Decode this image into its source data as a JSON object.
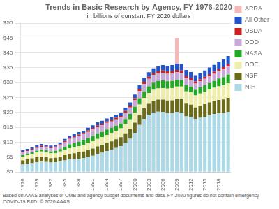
{
  "chart_data": {
    "type": "bar",
    "title": "Trends in Basic Research by Agency, FY 1976-2020",
    "subtitle": "in billions of constant FY 2020 dollars",
    "annotations": [
      "Based on AAAS analyses of OMB and agency budget documents and data. FY 2020 figures do not contain emergency COVID-19 R&D.  © 2020 AAAS"
    ],
    "stacked": true,
    "categories": [
      "1976",
      null,
      null,
      "1979",
      null,
      null,
      "1982",
      null,
      null,
      "1985",
      null,
      null,
      "1988",
      null,
      null,
      "1991",
      null,
      null,
      "1994",
      null,
      null,
      "1997",
      null,
      null,
      "2000",
      null,
      null,
      "2003",
      null,
      null,
      "2006",
      null,
      null,
      "2009",
      null,
      null,
      "2012",
      null,
      null,
      "2015",
      null,
      null,
      "2018",
      null,
      null
    ],
    "series": [
      {
        "name": "NIH",
        "color": "#add8e6",
        "values": [
          2.5,
          2.8,
          3.0,
          3.3,
          3.5,
          3.4,
          3.2,
          3.3,
          3.6,
          3.9,
          4.2,
          4.3,
          4.5,
          4.7,
          5.1,
          5.5,
          6.1,
          6.5,
          7.0,
          7.5,
          8.1,
          8.7,
          9.8,
          11.2,
          13.2,
          15.8,
          17.8,
          19.2,
          20.0,
          20.3,
          20.2,
          19.8,
          19.8,
          20.2,
          20.0,
          18.7,
          18.5,
          17.8,
          18.2,
          18.6,
          19.1,
          19.5,
          19.7,
          19.8,
          20.2
        ]
      },
      {
        "name": "NSF",
        "color": "#6b6b1a",
        "values": [
          1.4,
          1.5,
          1.6,
          1.7,
          1.7,
          1.6,
          1.5,
          1.5,
          1.6,
          1.8,
          1.9,
          2.0,
          2.1,
          2.2,
          2.3,
          2.4,
          2.5,
          2.6,
          2.7,
          2.8,
          2.9,
          3.0,
          3.2,
          3.3,
          3.4,
          3.5,
          3.6,
          3.7,
          3.9,
          4.0,
          4.1,
          4.2,
          4.3,
          4.4,
          4.5,
          4.3,
          4.1,
          3.9,
          4.1,
          4.2,
          4.3,
          4.4,
          4.5,
          4.6,
          4.7
        ]
      },
      {
        "name": "DOE",
        "color": "#eeeeaa",
        "values": [
          1.3,
          1.4,
          1.5,
          1.6,
          1.7,
          1.7,
          1.6,
          1.6,
          1.7,
          1.8,
          1.9,
          2.0,
          2.1,
          2.2,
          2.3,
          2.4,
          2.5,
          2.6,
          2.7,
          2.8,
          2.9,
          3.0,
          3.1,
          3.2,
          3.3,
          3.4,
          3.5,
          3.6,
          3.7,
          3.8,
          3.9,
          4.0,
          4.1,
          4.1,
          4.2,
          4.1,
          4.1,
          4.0,
          4.1,
          4.2,
          4.3,
          4.4,
          4.6,
          4.7,
          4.9
        ]
      },
      {
        "name": "NASA",
        "color": "#22aa22",
        "values": [
          0.5,
          0.5,
          0.5,
          0.6,
          0.6,
          0.6,
          0.6,
          0.7,
          0.8,
          1.0,
          1.3,
          1.4,
          1.5,
          1.6,
          1.7,
          1.8,
          1.9,
          1.8,
          1.9,
          1.8,
          1.7,
          1.6,
          1.7,
          1.8,
          2.0,
          2.1,
          2.2,
          2.3,
          2.4,
          2.5,
          2.6,
          2.5,
          2.4,
          2.3,
          2.2,
          2.1,
          2.0,
          1.9,
          2.0,
          2.1,
          2.2,
          2.3,
          2.6,
          2.8,
          2.9
        ]
      },
      {
        "name": "DOD",
        "color": "#c8a8d8",
        "values": [
          0.8,
          0.8,
          0.9,
          0.9,
          1.0,
          1.0,
          1.1,
          1.2,
          1.3,
          1.5,
          1.8,
          1.9,
          2.0,
          2.0,
          2.1,
          2.2,
          2.2,
          2.2,
          2.2,
          2.1,
          2.1,
          2.0,
          2.1,
          2.2,
          2.3,
          2.4,
          2.5,
          2.5,
          2.5,
          2.5,
          2.5,
          2.5,
          2.5,
          2.5,
          2.4,
          2.3,
          2.2,
          2.1,
          2.1,
          2.2,
          2.3,
          2.4,
          2.5,
          2.6,
          2.7
        ]
      },
      {
        "name": "USDA",
        "color": "#cc2222",
        "values": [
          0.3,
          0.3,
          0.3,
          0.3,
          0.3,
          0.3,
          0.3,
          0.3,
          0.3,
          0.4,
          0.4,
          0.4,
          0.4,
          0.4,
          0.5,
          0.5,
          0.5,
          0.5,
          0.5,
          0.5,
          0.5,
          0.5,
          0.6,
          0.6,
          0.6,
          0.6,
          0.7,
          0.7,
          0.7,
          0.7,
          0.8,
          0.8,
          0.8,
          0.8,
          0.8,
          0.7,
          0.7,
          0.7,
          0.7,
          0.7,
          0.7,
          0.7,
          0.7,
          0.7,
          0.8
        ]
      },
      {
        "name": "All Other",
        "color": "#2255cc",
        "values": [
          0.5,
          0.5,
          0.5,
          0.6,
          0.6,
          0.6,
          0.6,
          0.6,
          0.6,
          0.7,
          0.7,
          0.8,
          0.8,
          0.8,
          0.9,
          0.9,
          1.0,
          1.0,
          1.0,
          1.0,
          1.0,
          1.0,
          1.1,
          1.1,
          1.2,
          1.3,
          1.4,
          1.5,
          1.6,
          1.7,
          1.8,
          1.9,
          2.0,
          2.1,
          2.2,
          2.1,
          2.0,
          1.9,
          2.0,
          2.1,
          2.2,
          2.3,
          2.5,
          2.6,
          2.8
        ]
      },
      {
        "name": "ARRA",
        "color": "#f5b8b8",
        "values": [
          0.0,
          0.0,
          0.0,
          0.0,
          0.0,
          0.0,
          0.0,
          0.0,
          0.0,
          0.0,
          0.0,
          0.0,
          0.0,
          0.0,
          0.0,
          0.0,
          0.0,
          0.0,
          0.0,
          0.0,
          0.0,
          0.0,
          0.0,
          0.0,
          0.0,
          0.0,
          0.0,
          0.0,
          0.0,
          0.0,
          0.0,
          0.0,
          0.0,
          8.7,
          0.0,
          0.0,
          0.0,
          0.0,
          0.0,
          0.0,
          0.0,
          0.0,
          0.0,
          0.0,
          0.0
        ]
      }
    ],
    "ylim": [
      0,
      50
    ],
    "yticks": [
      {
        "value": 0,
        "label": "$0"
      },
      {
        "value": 5,
        "label": "$5"
      },
      {
        "value": 10,
        "label": "$10"
      },
      {
        "value": 15,
        "label": "$15"
      },
      {
        "value": 20,
        "label": "$20"
      },
      {
        "value": 25,
        "label": "$25"
      },
      {
        "value": 30,
        "label": "$30"
      },
      {
        "value": 35,
        "label": "$35"
      },
      {
        "value": 40,
        "label": "$40"
      },
      {
        "value": 45,
        "label": "$45"
      },
      {
        "value": 50,
        "label": "$50"
      }
    ],
    "grid": true,
    "legend": "right"
  }
}
